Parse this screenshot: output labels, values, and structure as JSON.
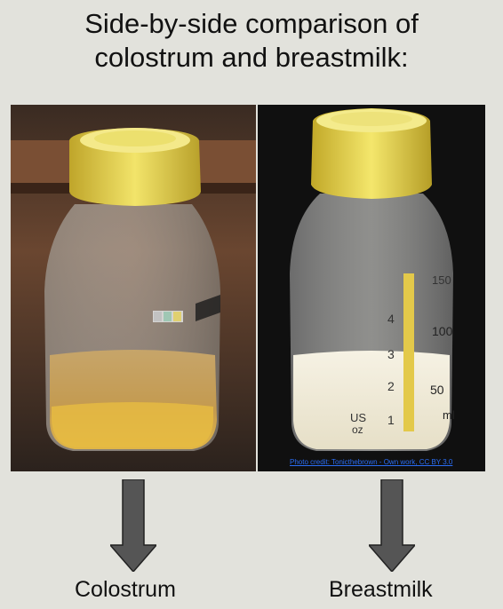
{
  "title": {
    "line1": "Side-by-side comparison of",
    "line2": "colostrum and breastmilk:"
  },
  "left": {
    "label": "Colostrum",
    "colors": {
      "fluid": "#c9a85a",
      "lid": "#e8d64a"
    }
  },
  "right": {
    "label": "Breastmilk",
    "colors": {
      "fluid": "#efeadb",
      "lid": "#ecdf4f"
    },
    "bottle_markings": {
      "oz": [
        "1",
        "2",
        "3",
        "4"
      ],
      "ml": [
        "50",
        "100",
        "150"
      ],
      "unit_oz_top": "US",
      "unit_oz_bottom": "oz",
      "unit_ml": "ml"
    },
    "credit": "Photo credit: Tonicthebrown - Own work, CC BY 3.0"
  },
  "arrow_color": "#555555"
}
